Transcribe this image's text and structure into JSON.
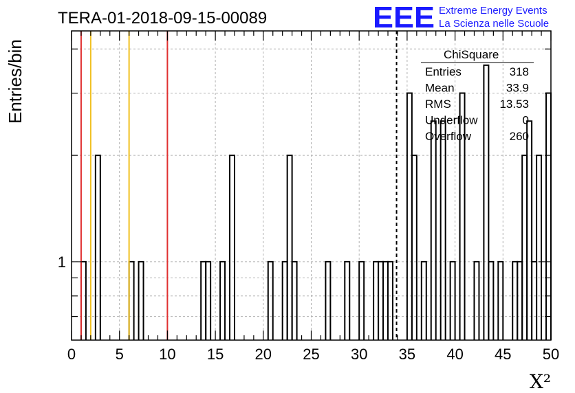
{
  "header": {
    "run_title": "TERA-01-2018-09-15-00089",
    "logo_text": "EEE",
    "logo_line1": "Extreme Energy Events",
    "logo_line2": "La Scienza nelle Scuole"
  },
  "stats_box": {
    "title": "ChiSquare",
    "rows": [
      {
        "label": "Entries",
        "value": "318"
      },
      {
        "label": "Mean",
        "value": "33.9"
      },
      {
        "label": "RMS",
        "value": "13.53"
      },
      {
        "label": "Underflow",
        "value": "0"
      },
      {
        "label": "Overflow",
        "value": "260"
      }
    ]
  },
  "colors": {
    "red_line": "#e03030",
    "yellow_line": "#f0c020",
    "logo_blue": "#1a1aff",
    "grid": "#b0b0b0"
  },
  "chart_data": {
    "type": "bar",
    "histogram": true,
    "xlabel": "X²",
    "ylabel": "Entries/bin",
    "xlim": [
      0,
      50
    ],
    "ylim": [
      0.6,
      4.5
    ],
    "log_y": true,
    "grid": true,
    "bin_width": 0.5,
    "x_ticks": [
      0,
      5,
      10,
      15,
      20,
      25,
      30,
      35,
      40,
      45,
      50
    ],
    "y_ticks": [
      1
    ],
    "bins": [
      {
        "x": 1.0,
        "value": 1
      },
      {
        "x": 2.5,
        "value": 2
      },
      {
        "x": 6.0,
        "value": 1
      },
      {
        "x": 7.0,
        "value": 1
      },
      {
        "x": 13.5,
        "value": 1
      },
      {
        "x": 14.0,
        "value": 1
      },
      {
        "x": 15.5,
        "value": 1
      },
      {
        "x": 16.5,
        "value": 2
      },
      {
        "x": 20.5,
        "value": 1
      },
      {
        "x": 22.0,
        "value": 1
      },
      {
        "x": 22.5,
        "value": 2
      },
      {
        "x": 23.0,
        "value": 1
      },
      {
        "x": 26.5,
        "value": 1
      },
      {
        "x": 28.5,
        "value": 1
      },
      {
        "x": 30.0,
        "value": 1
      },
      {
        "x": 31.5,
        "value": 1
      },
      {
        "x": 32.0,
        "value": 1
      },
      {
        "x": 32.5,
        "value": 1
      },
      {
        "x": 33.0,
        "value": 1
      },
      {
        "x": 35.0,
        "value": 3
      },
      {
        "x": 35.5,
        "value": 2
      },
      {
        "x": 36.5,
        "value": 1
      },
      {
        "x": 37.5,
        "value": 2.5
      },
      {
        "x": 38.5,
        "value": 2.5
      },
      {
        "x": 39.5,
        "value": 1
      },
      {
        "x": 40.5,
        "value": 3
      },
      {
        "x": 42.0,
        "value": 1
      },
      {
        "x": 43.0,
        "value": 3.6
      },
      {
        "x": 43.5,
        "value": 1
      },
      {
        "x": 44.5,
        "value": 1
      },
      {
        "x": 46.0,
        "value": 1
      },
      {
        "x": 46.5,
        "value": 1
      },
      {
        "x": 47.0,
        "value": 2
      },
      {
        "x": 47.5,
        "value": 2.5
      },
      {
        "x": 48.0,
        "value": 1
      },
      {
        "x": 48.5,
        "value": 2
      },
      {
        "x": 49.5,
        "value": 3
      }
    ],
    "reference_lines": [
      {
        "x": 1.0,
        "color": "red"
      },
      {
        "x": 2.0,
        "color": "yellow"
      },
      {
        "x": 6.0,
        "color": "yellow"
      },
      {
        "x": 10.0,
        "color": "red"
      },
      {
        "x": 33.9,
        "color": "black",
        "style": "dashed"
      }
    ]
  }
}
